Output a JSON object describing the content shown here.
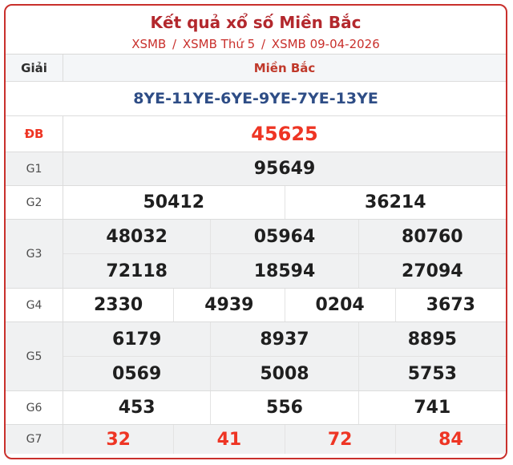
{
  "header": {
    "title": "Kết quả xổ số Miền Bắc",
    "breadcrumb": {
      "separator": "/",
      "items": [
        "XSMB",
        "XSMB Thứ 5",
        "XSMB 09-04-2026"
      ]
    }
  },
  "table": {
    "col_header": {
      "label": "Giải",
      "region": "Miền Bắc"
    },
    "loto_row": "8YE-11YE-6YE-9YE-7YE-13YE",
    "rows": [
      {
        "label": "ĐB",
        "highlight": true,
        "groups": [
          [
            "45625"
          ]
        ]
      },
      {
        "label": "G1",
        "highlight": false,
        "groups": [
          [
            "95649"
          ]
        ]
      },
      {
        "label": "G2",
        "highlight": false,
        "groups": [
          [
            "50412",
            "36214"
          ]
        ]
      },
      {
        "label": "G3",
        "highlight": false,
        "groups": [
          [
            "48032",
            "05964",
            "80760"
          ],
          [
            "72118",
            "18594",
            "27094"
          ]
        ]
      },
      {
        "label": "G4",
        "highlight": false,
        "groups": [
          [
            "2330",
            "4939",
            "0204",
            "3673"
          ]
        ]
      },
      {
        "label": "G5",
        "highlight": false,
        "groups": [
          [
            "6179",
            "8937",
            "8895"
          ],
          [
            "0569",
            "5008",
            "5753"
          ]
        ]
      },
      {
        "label": "G6",
        "highlight": false,
        "groups": [
          [
            "453",
            "556",
            "741"
          ]
        ]
      },
      {
        "label": "G7",
        "highlight": true,
        "groups": [
          [
            "32",
            "41",
            "72",
            "84"
          ]
        ]
      }
    ]
  },
  "colors": {
    "card_border": "#c9302c",
    "title_red": "#b3282d",
    "link_red": "#c9302c",
    "highlight_red": "#ee3524",
    "loto_navy": "#2e4d86",
    "alt_row_bg": "#f0f1f2",
    "header_row_bg": "#f4f6f8",
    "number_dark": "#1f1f1f"
  }
}
